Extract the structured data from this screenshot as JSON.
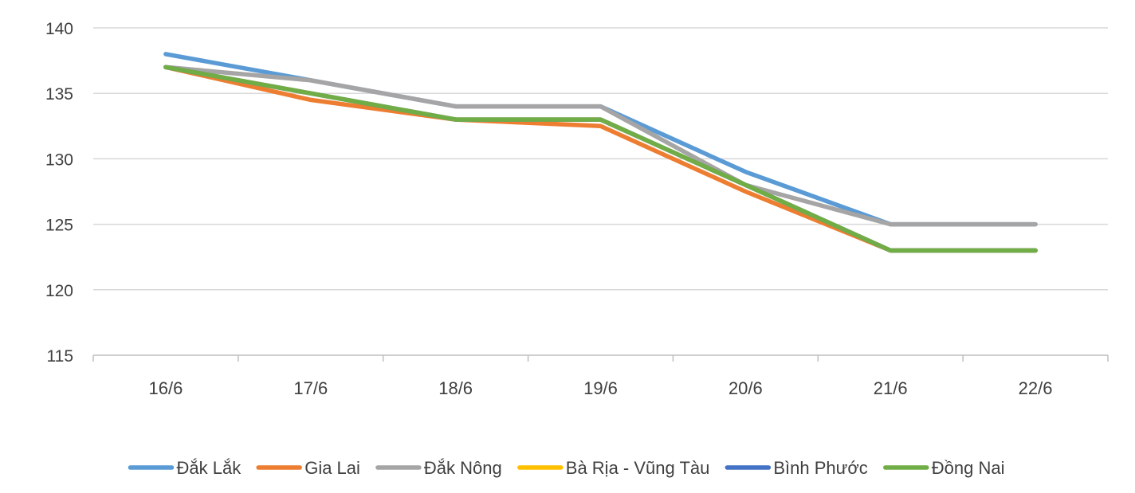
{
  "chart_data": {
    "type": "line",
    "categories": [
      "16/6",
      "17/6",
      "18/6",
      "19/6",
      "20/6",
      "21/6",
      "22/6"
    ],
    "ylim": [
      115,
      140
    ],
    "y_ticks": [
      115,
      120,
      125,
      130,
      135,
      140
    ],
    "grid": true,
    "legend_position": "bottom",
    "series": [
      {
        "name": "Đắk Lắk",
        "color": "#5B9BD5",
        "values": [
          138,
          136,
          134,
          134,
          129,
          125,
          125
        ]
      },
      {
        "name": "Gia Lai",
        "color": "#ED7D31",
        "values": [
          137,
          134.5,
          133,
          132.5,
          127.5,
          123,
          123
        ]
      },
      {
        "name": "Đắk Nông",
        "color": "#A5A5A5",
        "values": [
          137,
          136,
          134,
          134,
          128,
          125,
          125
        ]
      },
      {
        "name": "Bà Rịa - Vũng Tàu",
        "color": "#FFC000",
        "values": [
          137,
          135,
          133,
          133,
          128,
          123,
          123
        ]
      },
      {
        "name": "Bình Phước",
        "color": "#4472C4",
        "values": [
          137,
          135,
          133,
          133,
          128,
          123,
          123
        ]
      },
      {
        "name": "Đồng Nai",
        "color": "#70AD47",
        "values": [
          137,
          135,
          133,
          133,
          128,
          123,
          123
        ]
      }
    ]
  }
}
